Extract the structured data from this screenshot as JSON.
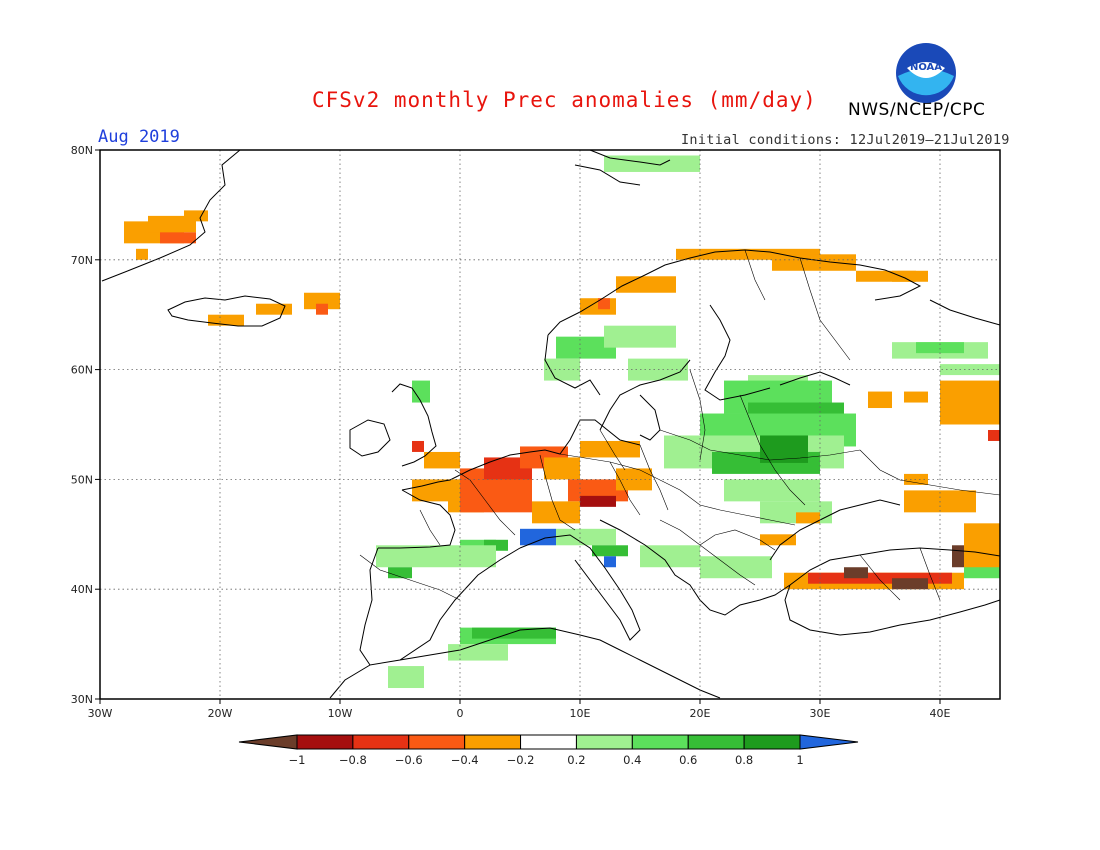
{
  "header": {
    "title": "CFSv2 monthly Prec anomalies (mm/day)",
    "agency": "NWS/NCEP/CPC",
    "logo_text": "NOAA",
    "month": "Aug 2019",
    "initial_conditions": "Initial conditions: 12Jul2019–21Jul2019"
  },
  "map": {
    "lon_range": [
      -30,
      45
    ],
    "lat_range": [
      30,
      80
    ],
    "lat_ticks": [
      {
        "value": 80,
        "label": "80N"
      },
      {
        "value": 70,
        "label": "70N"
      },
      {
        "value": 60,
        "label": "60N"
      },
      {
        "value": 50,
        "label": "50N"
      },
      {
        "value": 40,
        "label": "40N"
      },
      {
        "value": 30,
        "label": "30N"
      }
    ],
    "lon_ticks": [
      {
        "value": -30,
        "label": "30W"
      },
      {
        "value": -20,
        "label": "20W"
      },
      {
        "value": -10,
        "label": "10W"
      },
      {
        "value": 0,
        "label": "0"
      },
      {
        "value": 10,
        "label": "10E"
      },
      {
        "value": 20,
        "label": "20E"
      },
      {
        "value": 30,
        "label": "30E"
      },
      {
        "value": 40,
        "label": "40E"
      }
    ],
    "grid": "dotted",
    "colors": {
      "-1": "#6b3d2a",
      "-0.8": "#a50f0f",
      "-0.6": "#e63214",
      "-0.4": "#fa5a14",
      "-0.2": "#fa9f00",
      "0.2": "#a0f091",
      "0.4": "#5ce05c",
      "0.6": "#36be36",
      "0.8": "#1e9b1e",
      "1": "#2166dd"
    },
    "anomaly_patches": [
      {
        "lon": -28,
        "lat": 71.5,
        "w": 5,
        "h": 2,
        "class": "-0.2"
      },
      {
        "lon": -26,
        "lat": 72.5,
        "w": 4,
        "h": 1.5,
        "class": "-0.2"
      },
      {
        "lon": -25,
        "lat": 71.5,
        "w": 3,
        "h": 1,
        "class": "-0.4"
      },
      {
        "lon": -23,
        "lat": 73.5,
        "w": 2,
        "h": 1,
        "class": "-0.2"
      },
      {
        "lon": -27,
        "lat": 70,
        "w": 1,
        "h": 1,
        "class": "-0.2"
      },
      {
        "lon": -17,
        "lat": 65,
        "w": 3,
        "h": 1,
        "class": "-0.2"
      },
      {
        "lon": -13,
        "lat": 65.5,
        "w": 3,
        "h": 1.5,
        "class": "-0.2"
      },
      {
        "lon": -12,
        "lat": 65,
        "w": 1,
        "h": 1,
        "class": "-0.4"
      },
      {
        "lon": -21,
        "lat": 64,
        "w": 3,
        "h": 1,
        "class": "-0.2"
      },
      {
        "lon": 12,
        "lat": 78,
        "w": 8,
        "h": 1.5,
        "class": "0.2"
      },
      {
        "lon": 18,
        "lat": 70,
        "w": 12,
        "h": 1,
        "class": "-0.2"
      },
      {
        "lon": 26,
        "lat": 69,
        "w": 7,
        "h": 1.5,
        "class": "-0.2"
      },
      {
        "lon": 33,
        "lat": 68,
        "w": 5,
        "h": 1,
        "class": "-0.2"
      },
      {
        "lon": 13,
        "lat": 67,
        "w": 5,
        "h": 1.5,
        "class": "-0.2"
      },
      {
        "lon": 10,
        "lat": 65,
        "w": 3,
        "h": 1.5,
        "class": "-0.2"
      },
      {
        "lon": 11.5,
        "lat": 65.5,
        "w": 1,
        "h": 1,
        "class": "-0.4"
      },
      {
        "lon": 36,
        "lat": 68,
        "w": 3,
        "h": 1,
        "class": "-0.2"
      },
      {
        "lon": 8,
        "lat": 61,
        "w": 5,
        "h": 2,
        "class": "0.4"
      },
      {
        "lon": 12,
        "lat": 62,
        "w": 6,
        "h": 2,
        "class": "0.2"
      },
      {
        "lon": 14,
        "lat": 59,
        "w": 5,
        "h": 2,
        "class": "0.2"
      },
      {
        "lon": 7,
        "lat": 59,
        "w": 3,
        "h": 2,
        "class": "0.2"
      },
      {
        "lon": 36,
        "lat": 61,
        "w": 8,
        "h": 1.5,
        "class": "0.2"
      },
      {
        "lon": 38,
        "lat": 61.5,
        "w": 4,
        "h": 1,
        "class": "0.4"
      },
      {
        "lon": 40,
        "lat": 59.5,
        "w": 5,
        "h": 1,
        "class": "0.2"
      },
      {
        "lon": 24,
        "lat": 58,
        "w": 5,
        "h": 1.5,
        "class": "0.2"
      },
      {
        "lon": 22,
        "lat": 56,
        "w": 9,
        "h": 3,
        "class": "0.4"
      },
      {
        "lon": 24,
        "lat": 54,
        "w": 8,
        "h": 3,
        "class": "0.6"
      },
      {
        "lon": 20,
        "lat": 53,
        "w": 13,
        "h": 3,
        "class": "0.4"
      },
      {
        "lon": 17,
        "lat": 51,
        "w": 15,
        "h": 3,
        "class": "0.2"
      },
      {
        "lon": 21,
        "lat": 50.5,
        "w": 9,
        "h": 2,
        "class": "0.6"
      },
      {
        "lon": 25,
        "lat": 51.5,
        "w": 4,
        "h": 2.5,
        "class": "0.8"
      },
      {
        "lon": 22,
        "lat": 48,
        "w": 8,
        "h": 2,
        "class": "0.2"
      },
      {
        "lon": 25,
        "lat": 46,
        "w": 6,
        "h": 2,
        "class": "0.2"
      },
      {
        "lon": -4,
        "lat": 57,
        "w": 1.5,
        "h": 2,
        "class": "0.4"
      },
      {
        "lon": -3,
        "lat": 51,
        "w": 3,
        "h": 1.5,
        "class": "-0.2"
      },
      {
        "lon": -4,
        "lat": 52.5,
        "w": 1,
        "h": 1,
        "class": "-0.6"
      },
      {
        "lon": -4,
        "lat": 48,
        "w": 5,
        "h": 2,
        "class": "-0.2"
      },
      {
        "lon": -1,
        "lat": 47,
        "w": 3,
        "h": 3,
        "class": "-0.2"
      },
      {
        "lon": 0,
        "lat": 47,
        "w": 6,
        "h": 4,
        "class": "-0.4"
      },
      {
        "lon": 2,
        "lat": 50,
        "w": 4,
        "h": 2,
        "class": "-0.6"
      },
      {
        "lon": 5,
        "lat": 51,
        "w": 4,
        "h": 2,
        "class": "-0.4"
      },
      {
        "lon": 7,
        "lat": 50,
        "w": 3,
        "h": 2,
        "class": "-0.2"
      },
      {
        "lon": 10,
        "lat": 52,
        "w": 5,
        "h": 1.5,
        "class": "-0.2"
      },
      {
        "lon": 9,
        "lat": 48,
        "w": 5,
        "h": 2,
        "class": "-0.4"
      },
      {
        "lon": 10,
        "lat": 47.5,
        "w": 3,
        "h": 1,
        "class": "-0.8"
      },
      {
        "lon": 13,
        "lat": 49,
        "w": 3,
        "h": 2,
        "class": "-0.2"
      },
      {
        "lon": 6,
        "lat": 46,
        "w": 4,
        "h": 2,
        "class": "-0.2"
      },
      {
        "lon": 5,
        "lat": 44,
        "w": 3,
        "h": 1.5,
        "class": "1"
      },
      {
        "lon": 0,
        "lat": 43,
        "w": 3,
        "h": 1.5,
        "class": "0.4"
      },
      {
        "lon": 2,
        "lat": 43.5,
        "w": 2,
        "h": 1,
        "class": "0.6"
      },
      {
        "lon": 8,
        "lat": 44,
        "w": 5,
        "h": 1.5,
        "class": "0.2"
      },
      {
        "lon": 11,
        "lat": 43,
        "w": 3,
        "h": 1,
        "class": "0.6"
      },
      {
        "lon": 12,
        "lat": 42,
        "w": 1,
        "h": 1,
        "class": "1"
      },
      {
        "lon": 15,
        "lat": 42,
        "w": 5,
        "h": 2,
        "class": "0.2"
      },
      {
        "lon": -7,
        "lat": 42,
        "w": 10,
        "h": 2,
        "class": "0.2"
      },
      {
        "lon": -6,
        "lat": 41,
        "w": 2,
        "h": 1,
        "class": "0.6"
      },
      {
        "lon": 0,
        "lat": 35,
        "w": 8,
        "h": 1.5,
        "class": "0.4"
      },
      {
        "lon": 1,
        "lat": 35.5,
        "w": 7,
        "h": 1,
        "class": "0.6"
      },
      {
        "lon": -1,
        "lat": 33.5,
        "w": 5,
        "h": 1.5,
        "class": "0.2"
      },
      {
        "lon": -6,
        "lat": 31,
        "w": 3,
        "h": 2,
        "class": "0.2"
      },
      {
        "lon": 20,
        "lat": 41,
        "w": 6,
        "h": 2,
        "class": "0.2"
      },
      {
        "lon": 25,
        "lat": 44,
        "w": 3,
        "h": 1,
        "class": "-0.2"
      },
      {
        "lon": 28,
        "lat": 46,
        "w": 2,
        "h": 1,
        "class": "-0.2"
      },
      {
        "lon": 27,
        "lat": 40,
        "w": 15,
        "h": 1.5,
        "class": "-0.2"
      },
      {
        "lon": 29,
        "lat": 40.5,
        "w": 12,
        "h": 1,
        "class": "-0.6"
      },
      {
        "lon": 32,
        "lat": 41,
        "w": 2,
        "h": 1,
        "class": "-1"
      },
      {
        "lon": 36,
        "lat": 40,
        "w": 3,
        "h": 1,
        "class": "-1"
      },
      {
        "lon": 41,
        "lat": 42,
        "w": 1.5,
        "h": 2,
        "class": "-1"
      },
      {
        "lon": 42,
        "lat": 41,
        "w": 3,
        "h": 3,
        "class": "0.4"
      },
      {
        "lon": 42,
        "lat": 42,
        "w": 3,
        "h": 4,
        "class": "-0.2"
      },
      {
        "lon": 37,
        "lat": 47,
        "w": 6,
        "h": 2,
        "class": "-0.2"
      },
      {
        "lon": 40,
        "lat": 55,
        "w": 5,
        "h": 4,
        "class": "-0.2"
      },
      {
        "lon": 44,
        "lat": 53.5,
        "w": 1,
        "h": 1,
        "class": "-0.6"
      },
      {
        "lon": 34,
        "lat": 56.5,
        "w": 2,
        "h": 1.5,
        "class": "-0.2"
      },
      {
        "lon": 37,
        "lat": 57,
        "w": 2,
        "h": 1,
        "class": "-0.2"
      },
      {
        "lon": 37,
        "lat": 49.5,
        "w": 2,
        "h": 1,
        "class": "-0.2"
      }
    ]
  },
  "colorbar": {
    "labels": [
      "−1",
      "−0.8",
      "−0.6",
      "−0.4",
      "−0.2",
      "0.2",
      "0.4",
      "0.6",
      "0.8",
      "1"
    ],
    "colors": [
      "#6b3d2a",
      "#a50f0f",
      "#e63214",
      "#fa5a14",
      "#fa9f00",
      "#ffffff",
      "#a0f091",
      "#5ce05c",
      "#36be36",
      "#1e9b1e",
      "#2166dd"
    ]
  }
}
